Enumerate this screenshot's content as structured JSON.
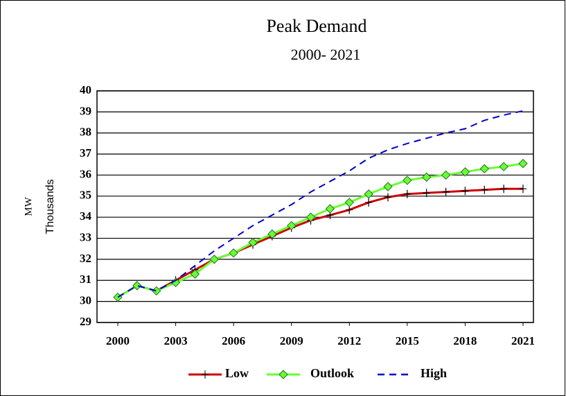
{
  "chart_data": {
    "type": "line",
    "title": "Peak Demand",
    "subtitle": "2000- 2021",
    "ylabel": [
      "MW",
      "Thousands"
    ],
    "x": [
      2000,
      2001,
      2002,
      2003,
      2004,
      2005,
      2006,
      2007,
      2008,
      2009,
      2010,
      2011,
      2012,
      2013,
      2014,
      2015,
      2016,
      2017,
      2018,
      2019,
      2020,
      2021
    ],
    "xlim": [
      2000,
      2021
    ],
    "xticks": [
      2000,
      2003,
      2006,
      2009,
      2012,
      2015,
      2018,
      2021
    ],
    "ylim": [
      29,
      40
    ],
    "yticks": [
      29,
      30,
      31,
      32,
      33,
      34,
      35,
      36,
      37,
      38,
      39,
      40
    ],
    "grid": true,
    "legend": "bottom",
    "series": [
      {
        "name": "Low",
        "color": "#cc0000",
        "marker": "plus",
        "dash": false,
        "values": [
          30.2,
          30.75,
          30.5,
          31.0,
          31.5,
          32.0,
          32.3,
          32.7,
          33.1,
          33.5,
          33.85,
          34.1,
          34.35,
          34.7,
          34.95,
          35.1,
          35.15,
          35.2,
          35.25,
          35.3,
          35.35,
          35.35
        ]
      },
      {
        "name": "Outlook",
        "color": "#66ff33",
        "marker": "diamond",
        "dash": false,
        "values": [
          30.2,
          30.75,
          30.5,
          30.9,
          31.3,
          32.0,
          32.3,
          32.8,
          33.2,
          33.6,
          34.0,
          34.4,
          34.7,
          35.1,
          35.45,
          35.75,
          35.9,
          36.0,
          36.15,
          36.3,
          36.4,
          36.55
        ]
      },
      {
        "name": "High",
        "color": "#0000cc",
        "marker": "none",
        "dash": true,
        "values": [
          30.2,
          30.75,
          30.5,
          31.0,
          31.7,
          32.4,
          33.0,
          33.6,
          34.1,
          34.6,
          35.2,
          35.7,
          36.2,
          36.8,
          37.2,
          37.5,
          37.75,
          38.0,
          38.2,
          38.6,
          38.85,
          39.05
        ]
      }
    ]
  }
}
